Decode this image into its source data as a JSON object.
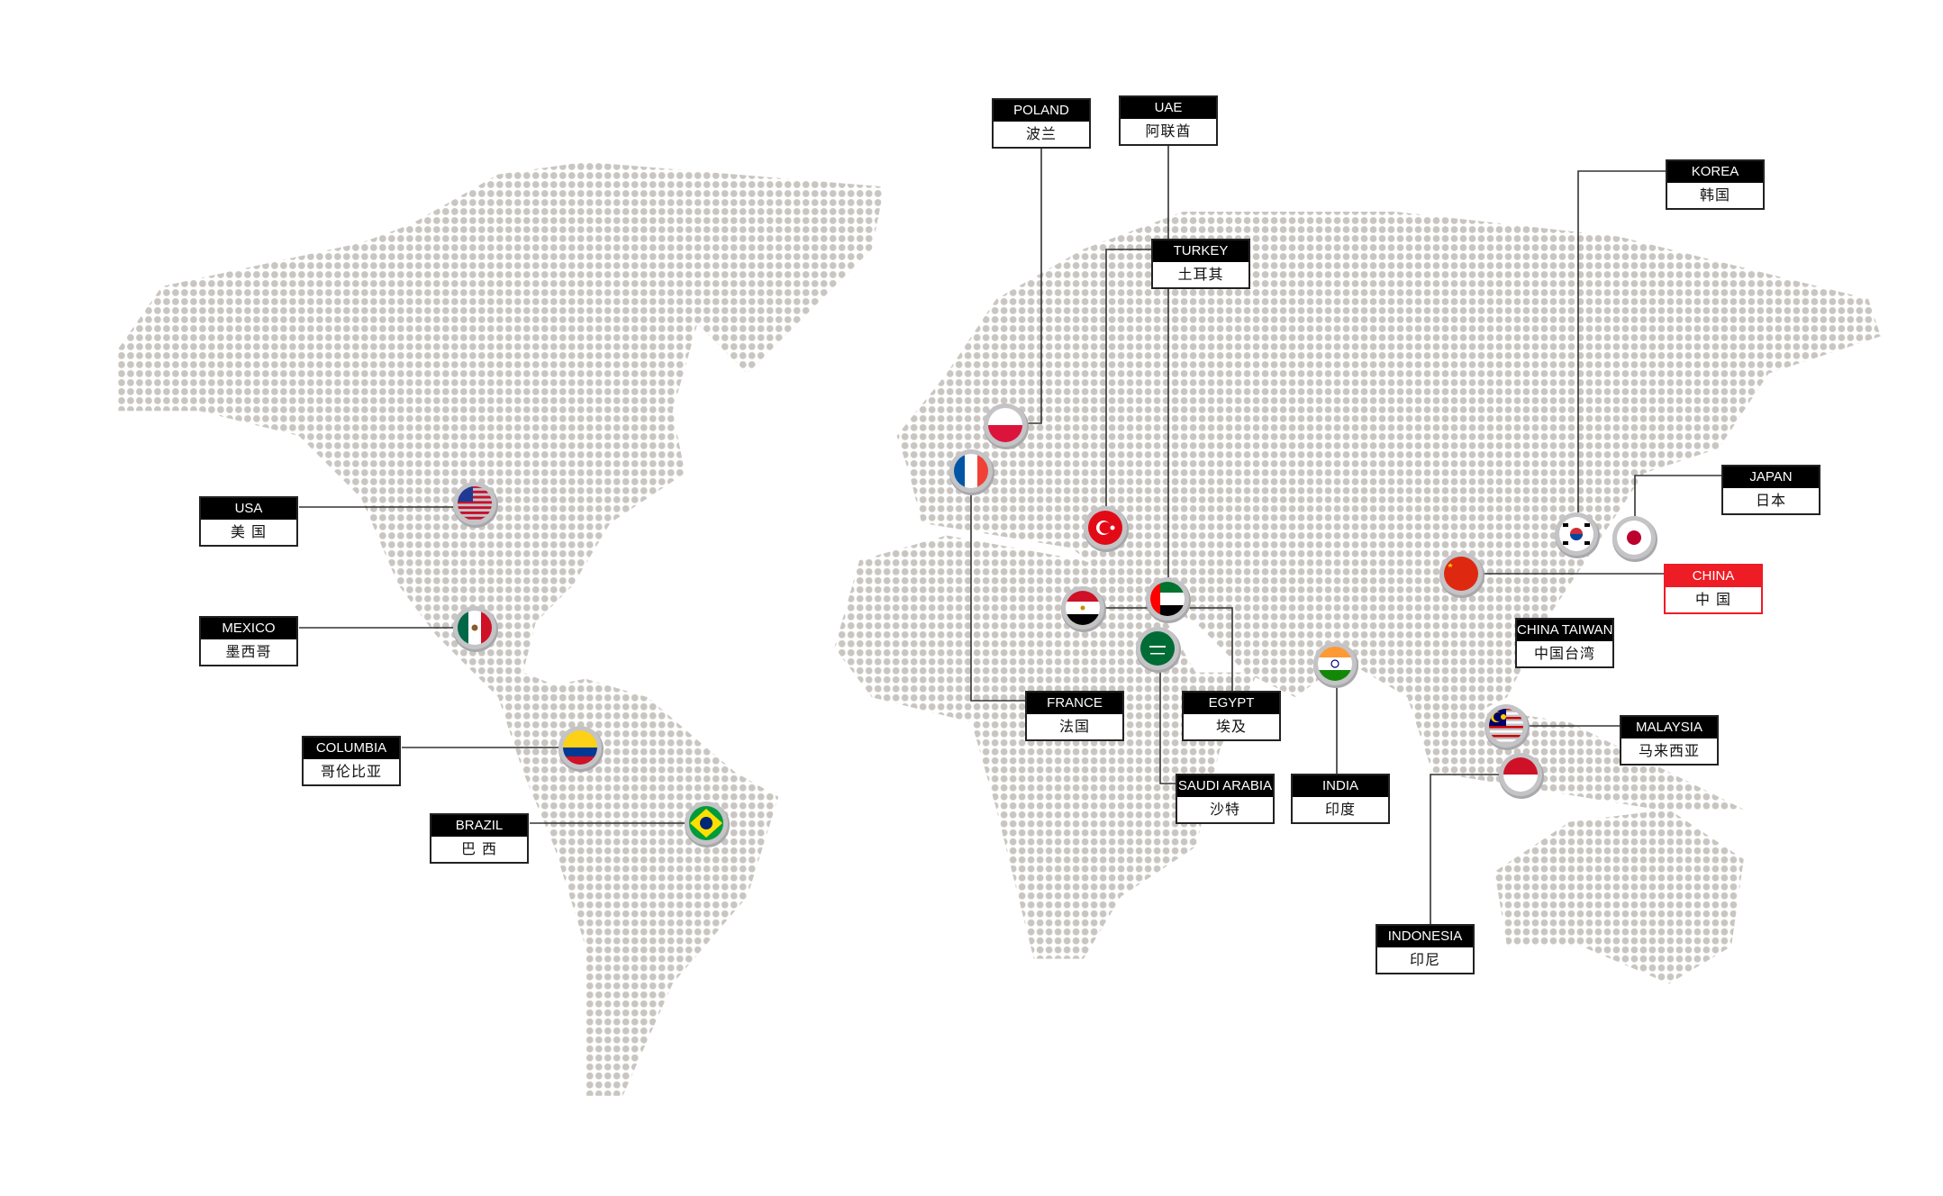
{
  "map": {
    "dot_color": "#c9c6c1",
    "line_color": "#333333",
    "highlight_color": "#ee1c25"
  },
  "locations": [
    {
      "id": "usa",
      "en": "USA",
      "cn": "美 国",
      "flag": "usa-flag"
    },
    {
      "id": "mexico",
      "en": "MEXICO",
      "cn": "墨西哥",
      "flag": "mexico-flag"
    },
    {
      "id": "columbia",
      "en": "COLUMBIA",
      "cn": "哥伦比亚",
      "flag": "colombia-flag"
    },
    {
      "id": "brazil",
      "en": "BRAZIL",
      "cn": "巴 西",
      "flag": "brazil-flag"
    },
    {
      "id": "poland",
      "en": "POLAND",
      "cn": "波兰",
      "flag": "poland-flag"
    },
    {
      "id": "uae",
      "en": "UAE",
      "cn": "阿联酋",
      "flag": "uae-flag"
    },
    {
      "id": "turkey",
      "en": "TURKEY",
      "cn": "土耳其",
      "flag": "turkey-flag"
    },
    {
      "id": "france",
      "en": "FRANCE",
      "cn": "法国",
      "flag": "france-flag"
    },
    {
      "id": "egypt",
      "en": "EGYPT",
      "cn": "埃及",
      "flag": "egypt-flag"
    },
    {
      "id": "saudi",
      "en": "SAUDI ARABIA",
      "cn": "沙特",
      "flag": "saudi-arabia-flag"
    },
    {
      "id": "india",
      "en": "INDIA",
      "cn": "印度",
      "flag": "india-flag"
    },
    {
      "id": "korea",
      "en": "KOREA",
      "cn": "韩国",
      "flag": "korea-flag"
    },
    {
      "id": "japan",
      "en": "JAPAN",
      "cn": "日本",
      "flag": "japan-flag"
    },
    {
      "id": "china",
      "en": "CHINA",
      "cn": "中 国",
      "flag": "china-flag",
      "highlight": true
    },
    {
      "id": "taiwan",
      "en": "CHINA TAIWAN",
      "cn": "中国台湾"
    },
    {
      "id": "malaysia",
      "en": "MALAYSIA",
      "cn": "马来西亚",
      "flag": "malaysia-flag"
    },
    {
      "id": "indonesia",
      "en": "INDONESIA",
      "cn": "印尼",
      "flag": "indonesia-flag"
    }
  ]
}
